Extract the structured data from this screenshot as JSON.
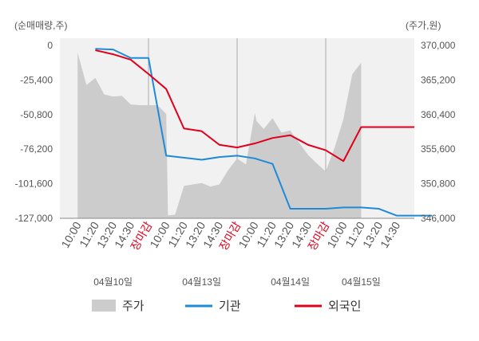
{
  "chart_data": {
    "type": "line",
    "left_axis_unit": "(순매매량,주)",
    "right_axis_unit": "(주가,원)",
    "left_ticks": [
      "0",
      "-25,400",
      "-50,800",
      "-76,200",
      "-101,600",
      "-127,000"
    ],
    "right_ticks": [
      "370,000",
      "365,200",
      "360,400",
      "355,600",
      "350,800",
      "346,000"
    ],
    "ylim_left": [
      -127000,
      0
    ],
    "ylim_right": [
      346000,
      370000
    ],
    "x_ticks": [
      {
        "label": "10:00",
        "red": false
      },
      {
        "label": "11:20",
        "red": false
      },
      {
        "label": "13:20",
        "red": false
      },
      {
        "label": "14:30",
        "red": false
      },
      {
        "label": "장마감",
        "red": true
      },
      {
        "label": "10:00",
        "red": false
      },
      {
        "label": "11:20",
        "red": false
      },
      {
        "label": "13:20",
        "red": false
      },
      {
        "label": "14:30",
        "red": false
      },
      {
        "label": "장마감",
        "red": true
      },
      {
        "label": "10:00",
        "red": false
      },
      {
        "label": "11:20",
        "red": false
      },
      {
        "label": "13:20",
        "red": false
      },
      {
        "label": "14:30",
        "red": false
      },
      {
        "label": "장마감",
        "red": true
      },
      {
        "label": "10:00",
        "red": false
      },
      {
        "label": "11:20",
        "red": false
      },
      {
        "label": "13:20",
        "red": false
      },
      {
        "label": "14:30",
        "red": false
      }
    ],
    "dates": [
      "04월10일",
      "04월13일",
      "04월14일",
      "04월15일"
    ],
    "legend": {
      "price": "주가",
      "institution": "기관",
      "foreign": "외국인"
    },
    "colors": {
      "price": "#cccccc",
      "institution": "#1f8ad7",
      "foreign": "#e1001a"
    },
    "series": [
      {
        "name": "기관",
        "x": [
          2,
          3,
          4,
          5,
          6,
          8,
          9,
          10,
          11,
          12,
          13,
          15,
          16,
          17,
          18,
          19,
          20,
          21
        ],
        "values": [
          -2500,
          -3000,
          -9200,
          -9200,
          -81000,
          -84000,
          -82000,
          -81000,
          -83000,
          -87000,
          -120000,
          -120000,
          -119000,
          -119000,
          -120000,
          -125000,
          -125000,
          -125000
        ]
      },
      {
        "name": "외국인",
        "x": [
          2,
          3,
          4,
          5,
          6,
          7,
          8,
          9,
          10,
          11,
          12,
          13,
          14,
          15,
          16,
          17,
          18,
          19,
          20
        ],
        "values": [
          -3500,
          -6500,
          -10500,
          -21000,
          -32000,
          -61000,
          -63000,
          -73000,
          -75000,
          -72000,
          -68000,
          -66000,
          -73000,
          -77000,
          -85000,
          -60000,
          -60000,
          -60000,
          -60000
        ]
      }
    ],
    "price": {
      "x": [
        1,
        1.5,
        2,
        2.5,
        3,
        3.5,
        4,
        4.5,
        5,
        5.5,
        6,
        6.1,
        6.5,
        7,
        7.5,
        8,
        8.5,
        9,
        9.5,
        10,
        10.5,
        11,
        11.1,
        11.5,
        12,
        12.5,
        13,
        13.5,
        14,
        14.5,
        15,
        15.5,
        16,
        16.1,
        16.5,
        17
      ],
      "values": [
        369000,
        364500,
        365500,
        363200,
        362900,
        363000,
        361800,
        361700,
        361700,
        361700,
        360500,
        346400,
        346500,
        350500,
        350700,
        350900,
        350400,
        350700,
        352700,
        354300,
        353500,
        360600,
        359500,
        358400,
        359900,
        357900,
        358200,
        356500,
        354800,
        353600,
        352500,
        355800,
        359800,
        361100,
        366000,
        367600
      ]
    }
  }
}
